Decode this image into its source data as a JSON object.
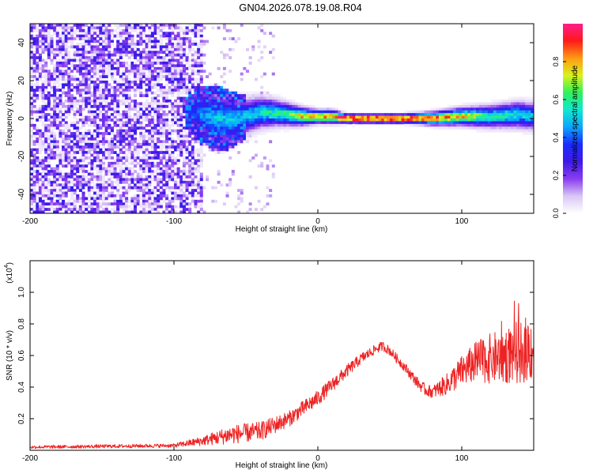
{
  "figure_title": "GN04.2026.078.19.08.R04",
  "colors": {
    "snr_line": "#ee2222",
    "axis": "#000000",
    "colormap": [
      "#ffffff",
      "#d9c6f5",
      "#8a3cf0",
      "#3d1ae8",
      "#1a2cff",
      "#0aa6ff",
      "#10e8d0",
      "#2ef25a",
      "#d9f21a",
      "#ff9a14",
      "#ff1a1a",
      "#ff1c8a"
    ]
  },
  "chart_data": [
    {
      "type": "heatmap",
      "name": "spectrogram",
      "title": "GN04.2026.078.19.08.R04",
      "xlabel": "Height of straight line (km)",
      "ylabel": "Frequency (Hz)",
      "xlim": [
        -200,
        150
      ],
      "ylim": [
        -50,
        50
      ],
      "xticks": [
        -200,
        -100,
        0,
        100
      ],
      "yticks": [
        -40,
        -20,
        0,
        20,
        40
      ],
      "colorbar": {
        "label": "Normalized spectral amplitude",
        "range": [
          0,
          1
        ],
        "ticks": [
          "0.0",
          "0.2",
          "0.4",
          "0.6",
          "0.8"
        ]
      },
      "signal_track": [
        {
          "x": -90,
          "freq": 3,
          "width": 6,
          "amp": 0.35
        },
        {
          "x": -80,
          "freq": 2,
          "width": 10,
          "amp": 0.45
        },
        {
          "x": -70,
          "freq": 0,
          "width": 12,
          "amp": 0.5
        },
        {
          "x": -60,
          "freq": -1,
          "width": 10,
          "amp": 0.5
        },
        {
          "x": -50,
          "freq": 1,
          "width": 8,
          "amp": 0.5
        },
        {
          "x": -40,
          "freq": 3,
          "width": 7,
          "amp": 0.55
        },
        {
          "x": -30,
          "freq": 3,
          "width": 6,
          "amp": 0.6
        },
        {
          "x": -20,
          "freq": 2,
          "width": 5,
          "amp": 0.65
        },
        {
          "x": -10,
          "freq": 1,
          "width": 4,
          "amp": 0.8
        },
        {
          "x": 0,
          "freq": 1,
          "width": 3,
          "amp": 0.85
        },
        {
          "x": 10,
          "freq": 1,
          "width": 3,
          "amp": 0.9
        },
        {
          "x": 20,
          "freq": 0,
          "width": 2,
          "amp": 1.0
        },
        {
          "x": 60,
          "freq": 0,
          "width": 2,
          "amp": 1.0
        },
        {
          "x": 80,
          "freq": 0,
          "width": 3,
          "amp": 0.9
        },
        {
          "x": 100,
          "freq": 1,
          "width": 4,
          "amp": 0.8
        },
        {
          "x": 120,
          "freq": 1,
          "width": 5,
          "amp": 0.6
        },
        {
          "x": 140,
          "freq": 2,
          "width": 6,
          "amp": 0.55
        },
        {
          "x": 150,
          "freq": 1,
          "width": 6,
          "amp": 0.5
        }
      ]
    },
    {
      "type": "line",
      "name": "snr",
      "xlabel": "Height of straight line (km)",
      "ylabel": "SNR (10 * v/v)",
      "scale_label": "(x10",
      "scale_exp": "4",
      "xlim": [
        -200,
        150
      ],
      "ylim": [
        0,
        1.2
      ],
      "xticks": [
        -200,
        -100,
        0,
        100
      ],
      "yticks": [
        0.2,
        0.4,
        0.6,
        0.8,
        1.0
      ],
      "series": [
        {
          "name": "SNR",
          "envelope_x": [
            -200,
            -150,
            -100,
            -80,
            -70,
            -60,
            -40,
            -20,
            0,
            20,
            30,
            40,
            45,
            50,
            60,
            70,
            75,
            80,
            90,
            100,
            110,
            120,
            130,
            140,
            145,
            150
          ],
          "envelope_y": [
            0.02,
            0.025,
            0.03,
            0.06,
            0.08,
            0.1,
            0.12,
            0.2,
            0.33,
            0.5,
            0.58,
            0.64,
            0.66,
            0.63,
            0.53,
            0.42,
            0.38,
            0.37,
            0.42,
            0.5,
            0.56,
            0.58,
            0.6,
            0.62,
            0.64,
            0.65
          ],
          "noise_x": [
            -200,
            -100,
            -80,
            -60,
            -40,
            -20,
            0,
            20,
            40,
            60,
            80,
            100,
            120,
            140,
            150
          ],
          "noise_y": [
            0.01,
            0.012,
            0.03,
            0.06,
            0.06,
            0.05,
            0.05,
            0.04,
            0.03,
            0.03,
            0.04,
            0.1,
            0.16,
            0.2,
            0.22
          ]
        }
      ]
    }
  ]
}
